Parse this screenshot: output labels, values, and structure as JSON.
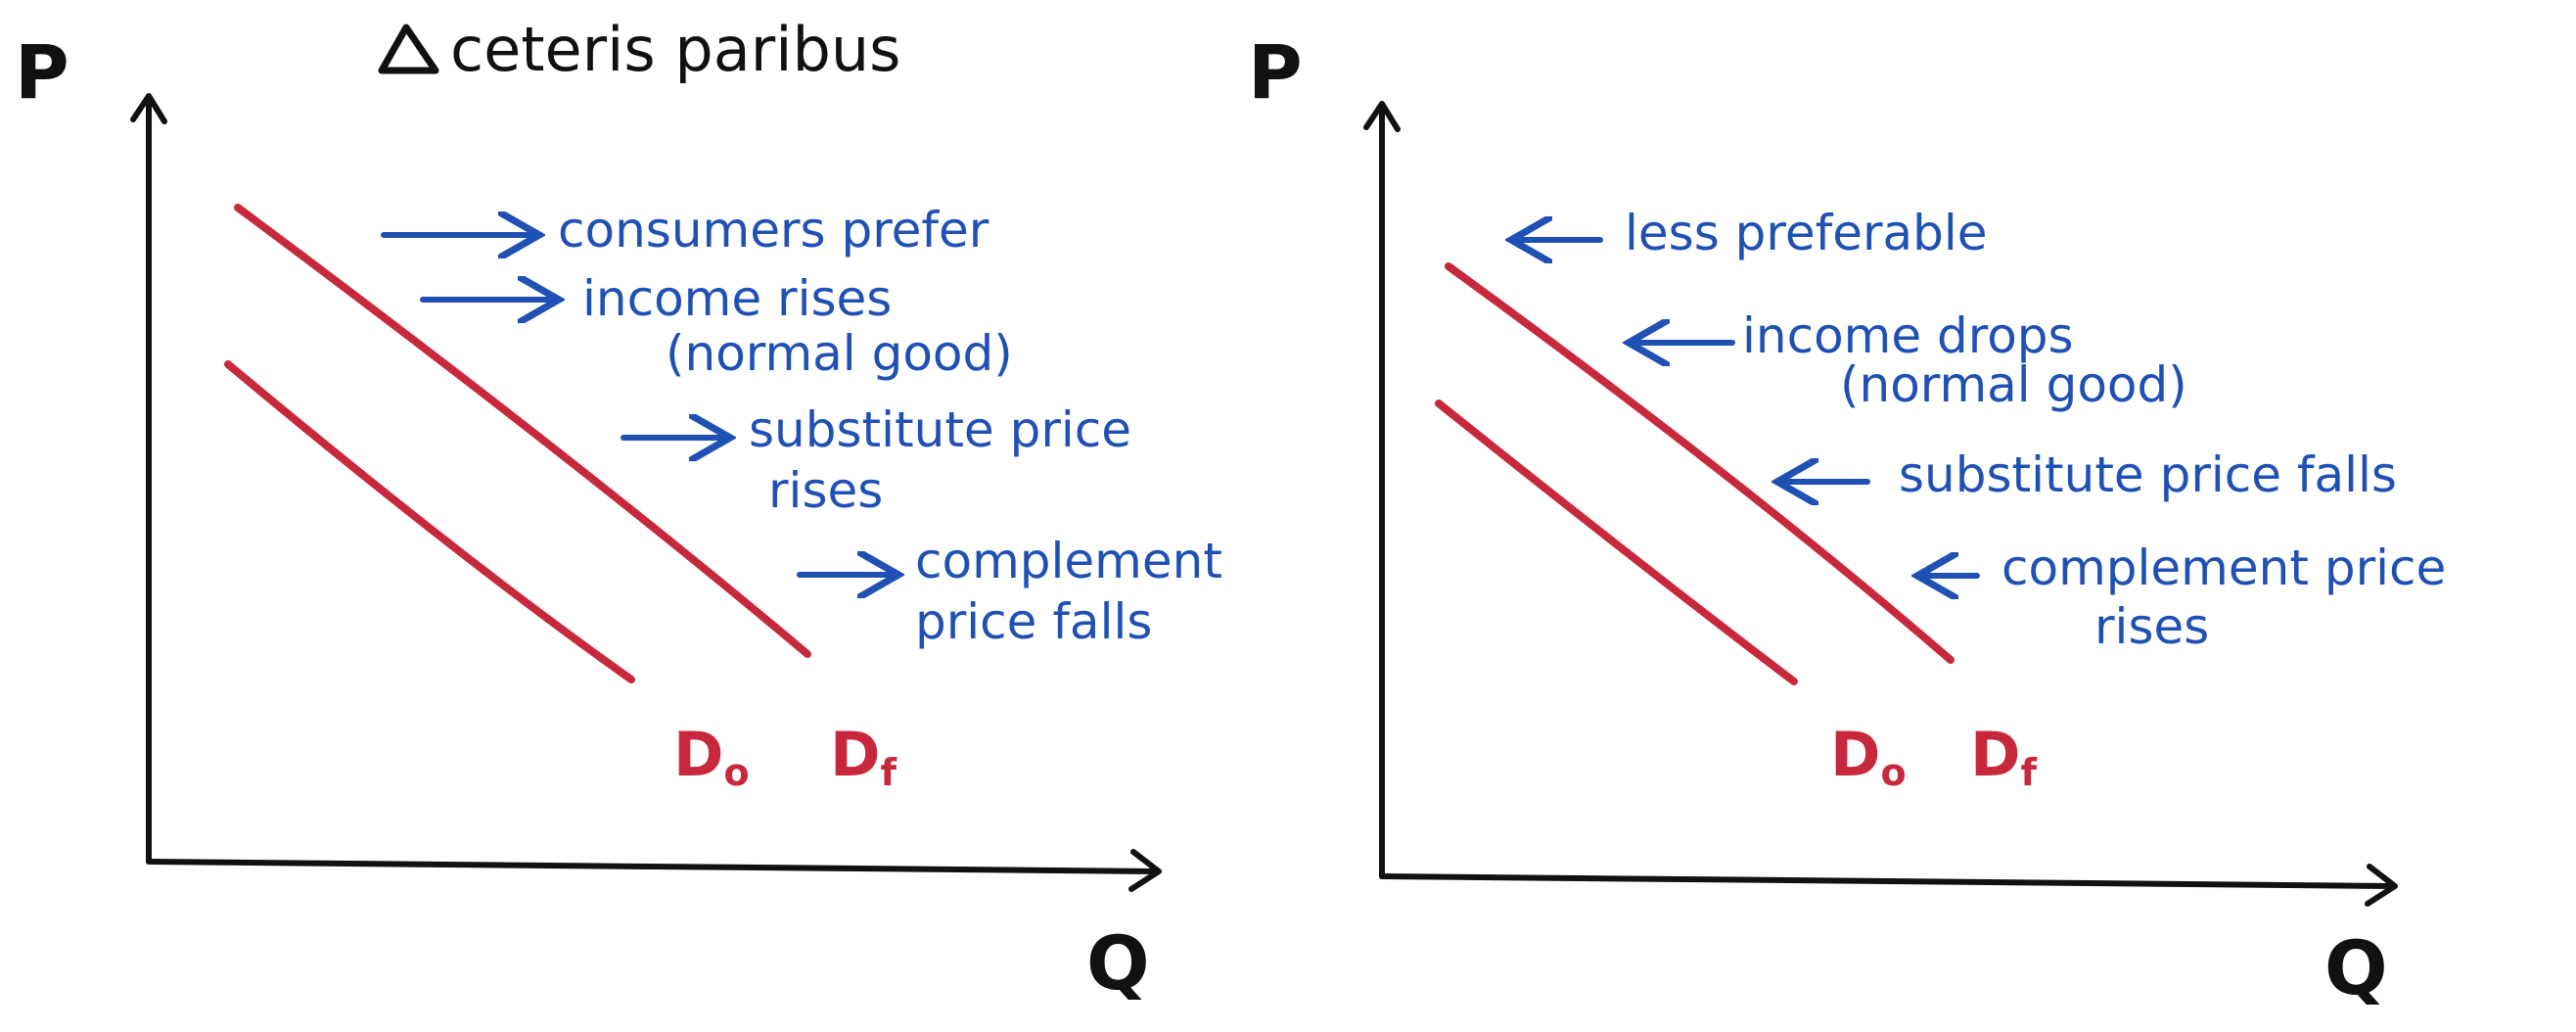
{
  "title": "ceteris paribus",
  "panels": [
    {
      "y_label": "P",
      "x_label": "Q",
      "curves": [
        "D",
        "D"
      ],
      "subscripts": [
        "o",
        "f"
      ],
      "notes": [
        {
          "l1": "consumers prefer",
          "l2": ""
        },
        {
          "l1": "income rises",
          "l2": "(normal good)"
        },
        {
          "l1": "substitute price",
          "l2": "rises"
        },
        {
          "l1": "complement",
          "l2": "price falls"
        }
      ]
    },
    {
      "y_label": "P",
      "x_label": "Q",
      "curves": [
        "D",
        "D"
      ],
      "subscripts": [
        "o",
        "f"
      ],
      "notes": [
        {
          "l1": "less preferable",
          "l2": ""
        },
        {
          "l1": "income drops",
          "l2": "(normal good)"
        },
        {
          "l1": "substitute price falls",
          "l2": ""
        },
        {
          "l1": "complement price",
          "l2": "rises"
        }
      ]
    }
  ]
}
